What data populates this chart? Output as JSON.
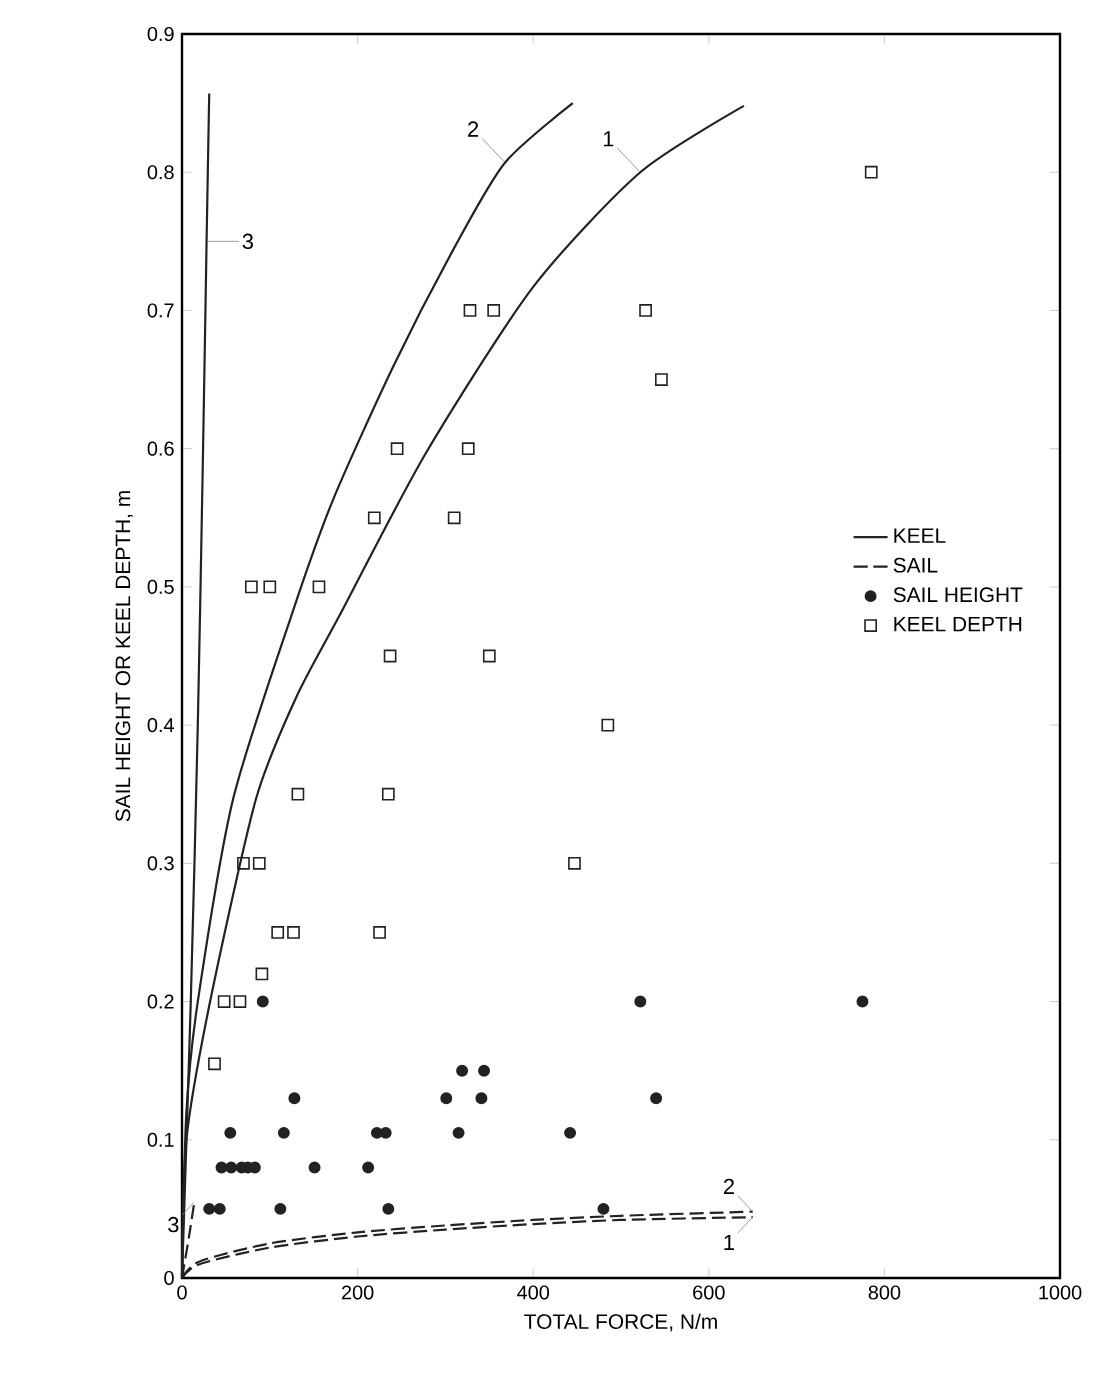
{
  "chart_data": {
    "type": "scatter",
    "xlabel": "TOTAL FORCE, N/m",
    "ylabel": "SAIL HEIGHT OR KEEL DEPTH, m",
    "xlim": [
      0,
      1000
    ],
    "ylim": [
      0,
      0.9
    ],
    "xticks": [
      0,
      200,
      400,
      600,
      800,
      1000
    ],
    "yticks": [
      0,
      0.1,
      0.2,
      0.3,
      0.4,
      0.5,
      0.6,
      0.7,
      0.8,
      0.9
    ],
    "grid": false,
    "legend": "right",
    "series": [
      {
        "name": "KEEL",
        "type": "line",
        "line_style": "solid",
        "marker": "none",
        "color": "#222222",
        "x": [
          0,
          5,
          32,
          84,
          130,
          180,
          278,
          400,
          522,
          640
        ],
        "values": [
          0,
          0.1,
          0.2,
          0.346,
          0.42,
          0.48,
          0.597,
          0.717,
          0.8,
          0.848
        ]
      },
      {
        "type": "line",
        "line_style": "solid",
        "marker": "none",
        "color": "#222222",
        "x": [
          0,
          5,
          18,
          58,
          125,
          172,
          241,
          309,
          368,
          445
        ],
        "values": [
          0,
          0.12,
          0.2,
          0.346,
          0.48,
          0.563,
          0.66,
          0.744,
          0.807,
          0.85
        ]
      },
      {
        "type": "line",
        "line_style": "solid",
        "marker": "none",
        "color": "#222222",
        "x": [
          0,
          10,
          18,
          24,
          28,
          31
        ],
        "values": [
          0,
          0.2,
          0.4,
          0.6,
          0.75,
          0.857
        ]
      },
      {
        "name": "SAIL",
        "type": "line",
        "line_style": "dashed",
        "marker": "none",
        "color": "#222222",
        "x": [
          0,
          20,
          100,
          200,
          300,
          400,
          500,
          650
        ],
        "values": [
          0,
          0.01,
          0.022,
          0.03,
          0.035,
          0.039,
          0.042,
          0.044
        ]
      },
      {
        "type": "line",
        "line_style": "dashed",
        "marker": "none",
        "color": "#222222",
        "x": [
          0,
          20,
          100,
          200,
          300,
          400,
          500,
          650
        ],
        "values": [
          0,
          0.012,
          0.025,
          0.033,
          0.038,
          0.042,
          0.045,
          0.048
        ]
      },
      {
        "type": "line",
        "line_style": "dashed",
        "marker": "none",
        "color": "#222222",
        "x": [
          0,
          8,
          14
        ],
        "values": [
          0,
          0.03,
          0.055
        ]
      },
      {
        "name": "SAIL HEIGHT",
        "marker": "circle",
        "color": "#222222",
        "x": [
          92,
          522,
          775,
          319,
          344,
          128,
          301,
          341,
          540,
          55,
          116,
          222,
          232,
          315,
          442,
          45,
          56,
          68,
          75,
          83,
          151,
          212,
          31,
          43,
          112,
          235,
          480
        ],
        "values": [
          0.2,
          0.2,
          0.2,
          0.15,
          0.15,
          0.13,
          0.13,
          0.13,
          0.13,
          0.105,
          0.105,
          0.105,
          0.105,
          0.105,
          0.105,
          0.08,
          0.08,
          0.08,
          0.08,
          0.08,
          0.08,
          0.08,
          0.05,
          0.05,
          0.05,
          0.05,
          0.05
        ]
      },
      {
        "name": "KEEL DEPTH",
        "marker": "square",
        "color": "#222222",
        "x": [
          785,
          328,
          355,
          528,
          546,
          245,
          326,
          219,
          310,
          79,
          100,
          156,
          237,
          350,
          485,
          132,
          235,
          70,
          88,
          447,
          109,
          127,
          225,
          91,
          48,
          66,
          37
        ],
        "values": [
          0.8,
          0.7,
          0.7,
          0.7,
          0.65,
          0.6,
          0.6,
          0.55,
          0.55,
          0.5,
          0.5,
          0.5,
          0.45,
          0.45,
          0.4,
          0.35,
          0.35,
          0.3,
          0.3,
          0.3,
          0.25,
          0.25,
          0.25,
          0.22,
          0.2,
          0.2,
          0.155
        ]
      }
    ],
    "annotations": [
      {
        "text": "3",
        "x": 28,
        "y": 0.75
      },
      {
        "text": "2",
        "x": 368,
        "y": 0.807
      },
      {
        "text": "1",
        "x": 522,
        "y": 0.8
      },
      {
        "text": "2",
        "x": 650,
        "y": 0.048
      },
      {
        "text": "1",
        "x": 650,
        "y": 0.044
      },
      {
        "text": "3",
        "x": 14,
        "y": 0.055
      }
    ]
  }
}
